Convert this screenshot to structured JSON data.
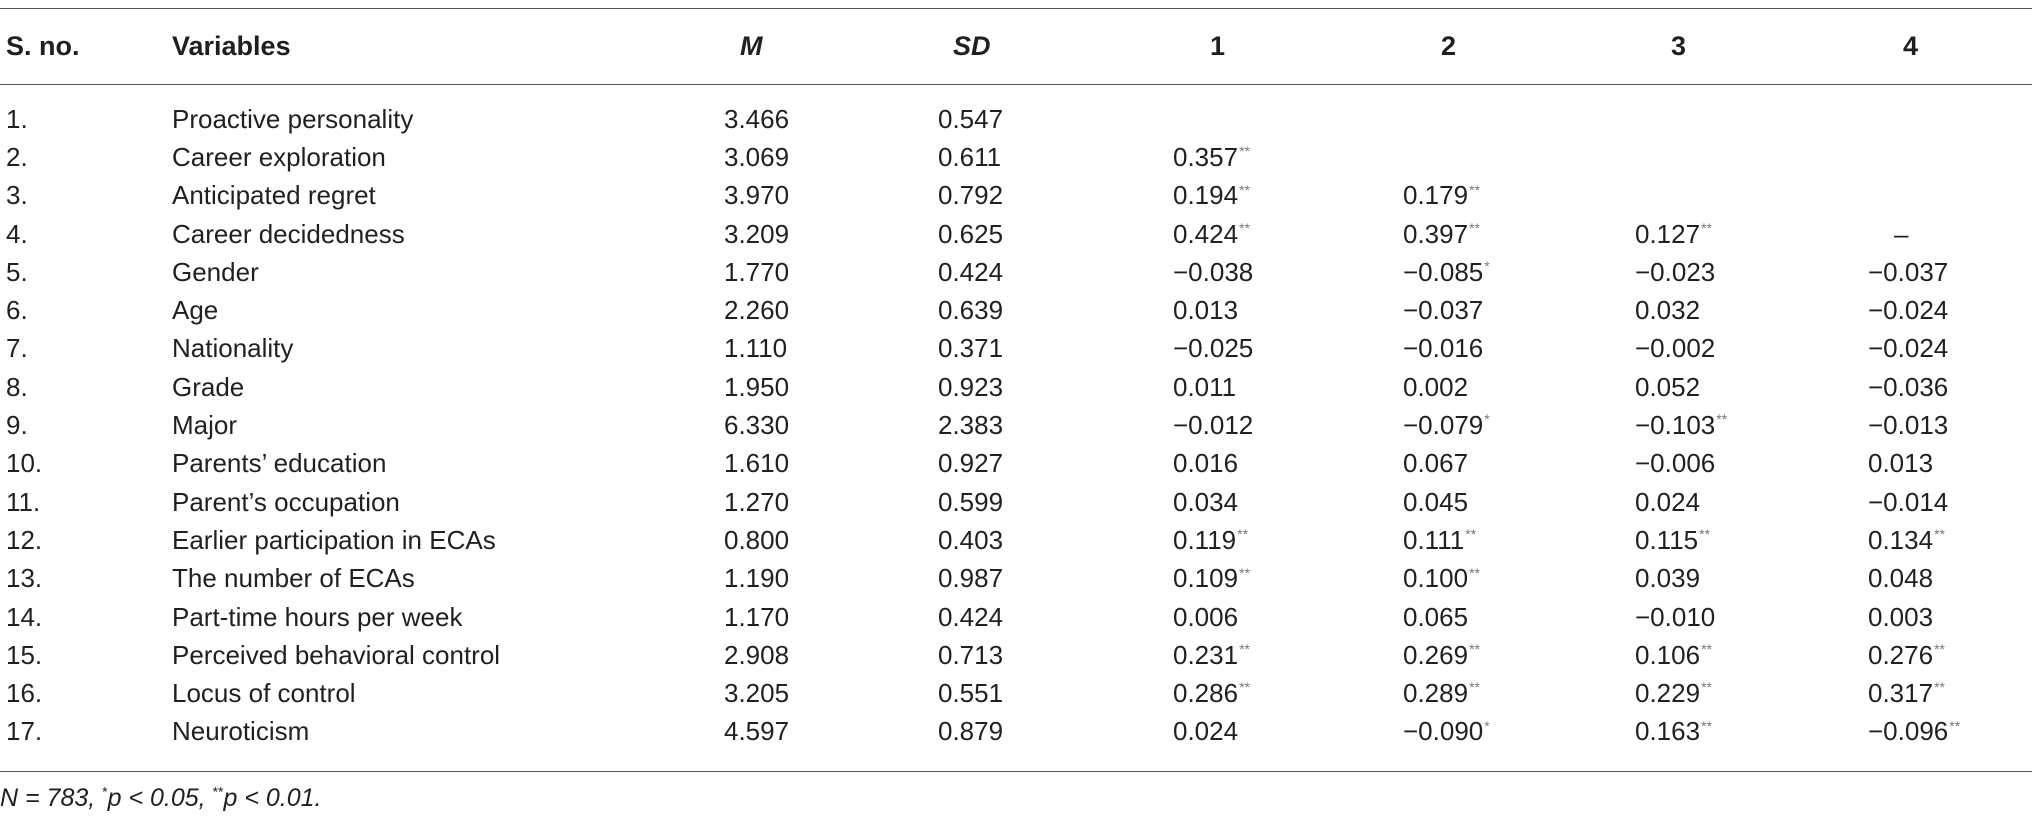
{
  "table": {
    "headers": [
      "S. no.",
      "Variables",
      "M",
      "SD",
      "1",
      "2",
      "3",
      "4"
    ],
    "rows": [
      {
        "sno": "1.",
        "variable": "Proactive personality",
        "m": "3.466",
        "sd": "0.547",
        "c1": "",
        "c1sig": "",
        "c2": "",
        "c2sig": "",
        "c3": "",
        "c3sig": "",
        "c4": "",
        "c4sig": ""
      },
      {
        "sno": "2.",
        "variable": "Career exploration",
        "m": "3.069",
        "sd": "0.611",
        "c1": "0.357",
        "c1sig": "**",
        "c2": "",
        "c2sig": "",
        "c3": "",
        "c3sig": "",
        "c4": "",
        "c4sig": ""
      },
      {
        "sno": "3.",
        "variable": "Anticipated regret",
        "m": "3.970",
        "sd": "0.792",
        "c1": "0.194",
        "c1sig": "**",
        "c2": "0.179",
        "c2sig": "**",
        "c3": "",
        "c3sig": "",
        "c4": "",
        "c4sig": ""
      },
      {
        "sno": "4.",
        "variable": "Career decidedness",
        "m": "3.209",
        "sd": "0.625",
        "c1": "0.424",
        "c1sig": "**",
        "c2": "0.397",
        "c2sig": "**",
        "c3": "0.127",
        "c3sig": "**",
        "c4": "–",
        "c4sig": ""
      },
      {
        "sno": "5.",
        "variable": "Gender",
        "m": "1.770",
        "sd": "0.424",
        "c1": "−0.038",
        "c1sig": "",
        "c2": "−0.085",
        "c2sig": "*",
        "c3": "−0.023",
        "c3sig": "",
        "c4": "−0.037",
        "c4sig": ""
      },
      {
        "sno": "6.",
        "variable": "Age",
        "m": "2.260",
        "sd": "0.639",
        "c1": "0.013",
        "c1sig": "",
        "c2": "−0.037",
        "c2sig": "",
        "c3": "0.032",
        "c3sig": "",
        "c4": "−0.024",
        "c4sig": ""
      },
      {
        "sno": "7.",
        "variable": "Nationality",
        "m": "1.110",
        "sd": "0.371",
        "c1": "−0.025",
        "c1sig": "",
        "c2": "−0.016",
        "c2sig": "",
        "c3": "−0.002",
        "c3sig": "",
        "c4": "−0.024",
        "c4sig": ""
      },
      {
        "sno": "8.",
        "variable": "Grade",
        "m": "1.950",
        "sd": "0.923",
        "c1": "0.011",
        "c1sig": "",
        "c2": "0.002",
        "c2sig": "",
        "c3": "0.052",
        "c3sig": "",
        "c4": "−0.036",
        "c4sig": ""
      },
      {
        "sno": "9.",
        "variable": "Major",
        "m": "6.330",
        "sd": "2.383",
        "c1": "−0.012",
        "c1sig": "",
        "c2": "−0.079",
        "c2sig": "*",
        "c3": "−0.103",
        "c3sig": "**",
        "c4": "−0.013",
        "c4sig": ""
      },
      {
        "sno": "10.",
        "variable": "Parents’ education",
        "m": "1.610",
        "sd": "0.927",
        "c1": "0.016",
        "c1sig": "",
        "c2": "0.067",
        "c2sig": "",
        "c3": "−0.006",
        "c3sig": "",
        "c4": "0.013",
        "c4sig": ""
      },
      {
        "sno": "11.",
        "variable": "Parent’s occupation",
        "m": "1.270",
        "sd": "0.599",
        "c1": "0.034",
        "c1sig": "",
        "c2": "0.045",
        "c2sig": "",
        "c3": "0.024",
        "c3sig": "",
        "c4": "−0.014",
        "c4sig": ""
      },
      {
        "sno": "12.",
        "variable": "Earlier participation in ECAs",
        "m": "0.800",
        "sd": "0.403",
        "c1": "0.119",
        "c1sig": "**",
        "c2": "0.111",
        "c2sig": "**",
        "c3": "0.115",
        "c3sig": "**",
        "c4": "0.134",
        "c4sig": "**"
      },
      {
        "sno": "13.",
        "variable": "The number of ECAs",
        "m": "1.190",
        "sd": "0.987",
        "c1": "0.109",
        "c1sig": "**",
        "c2": "0.100",
        "c2sig": "**",
        "c3": "0.039",
        "c3sig": "",
        "c4": "0.048",
        "c4sig": ""
      },
      {
        "sno": "14.",
        "variable": "Part-time hours per week",
        "m": "1.170",
        "sd": "0.424",
        "c1": "0.006",
        "c1sig": "",
        "c2": "0.065",
        "c2sig": "",
        "c3": "−0.010",
        "c3sig": "",
        "c4": "0.003",
        "c4sig": ""
      },
      {
        "sno": "15.",
        "variable": "Perceived behavioral control",
        "m": "2.908",
        "sd": "0.713",
        "c1": "0.231",
        "c1sig": "**",
        "c2": "0.269",
        "c2sig": "**",
        "c3": "0.106",
        "c3sig": "**",
        "c4": "0.276",
        "c4sig": "**"
      },
      {
        "sno": "16.",
        "variable": "Locus of control",
        "m": "3.205",
        "sd": "0.551",
        "c1": "0.286",
        "c1sig": "**",
        "c2": "0.289",
        "c2sig": "**",
        "c3": "0.229",
        "c3sig": "**",
        "c4": "0.317",
        "c4sig": "**"
      },
      {
        "sno": "17.",
        "variable": "Neuroticism",
        "m": "4.597",
        "sd": "0.879",
        "c1": "0.024",
        "c1sig": "",
        "c2": "−0.090",
        "c2sig": "*",
        "c3": "0.163",
        "c3sig": "**",
        "c4": "−0.096",
        "c4sig": "**"
      }
    ]
  },
  "footnote": {
    "n": "N = 783, ",
    "sig1_mark": "*",
    "sig1_text": "p < 0.05, ",
    "sig2_mark": "**",
    "sig2_text": "p < 0.01."
  }
}
